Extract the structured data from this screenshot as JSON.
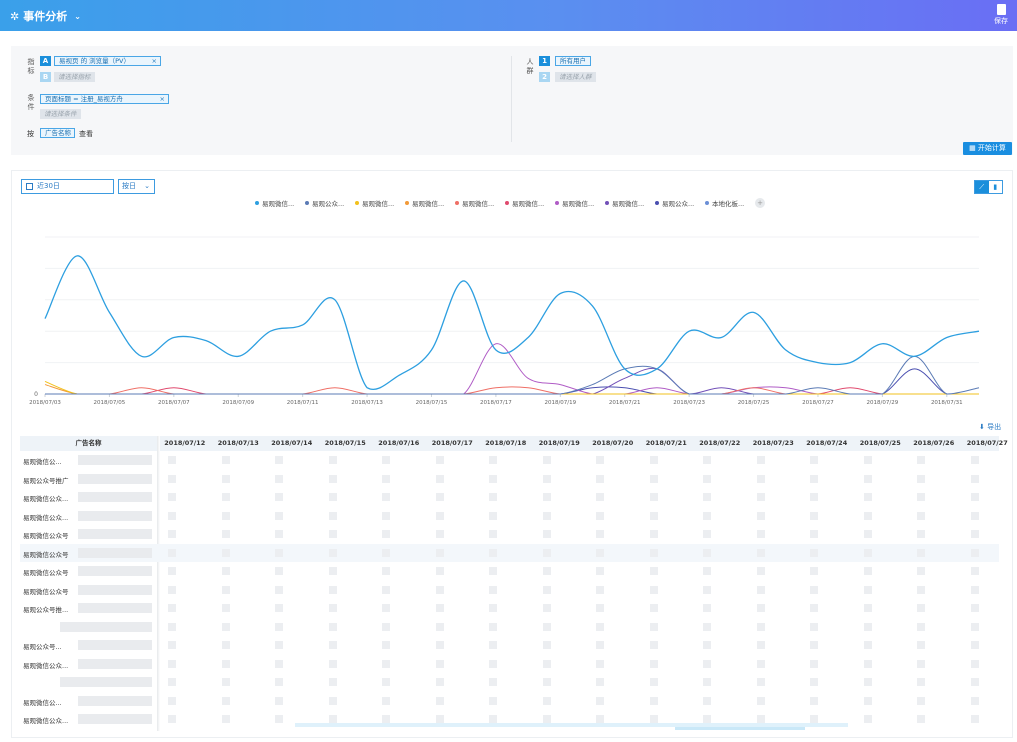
{
  "header": {
    "title": "事件分析",
    "save_label": "保存"
  },
  "query": {
    "metric_label": "指标",
    "condition_label": "条件",
    "group_label": "按",
    "people_label": "人群",
    "metric_letter_a": "A",
    "metric_letter_b": "B",
    "metric_chip": "易视页 的 浏览量（PV）",
    "metric_placeholder": "请选择指标",
    "condition_chip": "页面标题 = 注册_易视方舟",
    "condition_placeholder": "请选择条件",
    "group_chip": "广告名称",
    "group_view": "查看",
    "people_num_1": "1",
    "people_num_2": "2",
    "people_chip": "所有用户",
    "people_placeholder": "请选择人群",
    "calc_button": "开始计算"
  },
  "toolbar": {
    "date_range": "近30日",
    "granularity": "按日",
    "export_label": "导出"
  },
  "legend": [
    {
      "label": "易观微信...",
      "color": "#2d9fe0"
    },
    {
      "label": "易观公众...",
      "color": "#5b7bb5"
    },
    {
      "label": "易观微信...",
      "color": "#f2c11c"
    },
    {
      "label": "易观微信...",
      "color": "#f29a38"
    },
    {
      "label": "易观微信...",
      "color": "#ef6f66"
    },
    {
      "label": "易观微信...",
      "color": "#e04a6e"
    },
    {
      "label": "易观微信...",
      "color": "#b05cc6"
    },
    {
      "label": "易观微信...",
      "color": "#7250b8"
    },
    {
      "label": "易观公众...",
      "color": "#4a4fb0"
    },
    {
      "label": "本地化板...",
      "color": "#6b8fd6"
    }
  ],
  "chart_data": {
    "type": "line",
    "x": [
      "2018/07/03",
      "2018/07/04",
      "2018/07/05",
      "2018/07/06",
      "2018/07/07",
      "2018/07/08",
      "2018/07/09",
      "2018/07/10",
      "2018/07/11",
      "2018/07/12",
      "2018/07/13",
      "2018/07/14",
      "2018/07/15",
      "2018/07/16",
      "2018/07/17",
      "2018/07/18",
      "2018/07/19",
      "2018/07/20",
      "2018/07/21",
      "2018/07/22",
      "2018/07/23",
      "2018/07/24",
      "2018/07/25",
      "2018/07/26",
      "2018/07/27",
      "2018/07/28",
      "2018/07/29",
      "2018/07/30",
      "2018/07/31",
      "2018/08/01"
    ],
    "x_tick_labels": [
      "2018/07/03",
      "2018/07/05",
      "2018/07/07",
      "2018/07/09",
      "2018/07/11",
      "2018/07/13",
      "2018/07/15",
      "2018/07/17",
      "2018/07/19",
      "2018/07/21",
      "2018/07/23",
      "2018/07/25",
      "2018/07/27",
      "2018/07/29",
      "2018/07/31"
    ],
    "y_tick_labels": [
      "0"
    ],
    "ylim": [
      0,
      5
    ],
    "grid": true,
    "legend_position": "top",
    "series": [
      {
        "name": "易观微信...",
        "color": "#2d9fe0",
        "values": [
          2.4,
          4.4,
          2.6,
          1.2,
          1.8,
          1.7,
          1.2,
          2.0,
          2.2,
          3.0,
          0.2,
          0.6,
          1.4,
          3.6,
          1.4,
          1.8,
          3.2,
          2.8,
          0.8,
          0.8,
          2.0,
          1.8,
          2.6,
          1.4,
          1.0,
          1.0,
          1.6,
          1.2,
          1.8,
          2.0
        ]
      },
      {
        "name": "易观公众...",
        "color": "#5b7bb5",
        "values": [
          0,
          0,
          0,
          0,
          0,
          0,
          0,
          0,
          0,
          0,
          0,
          0,
          0,
          0,
          0,
          0,
          0,
          0.3,
          0.8,
          0.8,
          0,
          0,
          0,
          0,
          0.2,
          0,
          0,
          1.2,
          0,
          0.2
        ]
      },
      {
        "name": "易观微信...",
        "color": "#f2c11c",
        "values": [
          0.4,
          0,
          0,
          0,
          0,
          0,
          0,
          0,
          0,
          0,
          0,
          0,
          0,
          0,
          0,
          0,
          0,
          0,
          0,
          0,
          0,
          0,
          0,
          0,
          0,
          0,
          0,
          0,
          0,
          0
        ]
      },
      {
        "name": "易观微信...",
        "color": "#f29a38",
        "values": [
          0.3,
          0,
          0,
          0,
          0,
          0,
          0,
          0,
          0,
          0,
          0,
          0,
          0,
          0,
          0,
          0,
          0,
          0,
          0,
          0,
          0,
          0,
          0,
          0,
          0,
          0,
          0,
          0,
          0,
          0
        ]
      },
      {
        "name": "易观微信...",
        "color": "#ef6f66",
        "values": [
          0,
          0,
          0,
          0.2,
          0,
          0,
          0,
          0,
          0,
          0.2,
          0,
          0,
          0,
          0,
          0.2,
          0.2,
          0,
          0,
          0,
          0,
          0,
          0,
          0.2,
          0,
          0,
          0,
          0,
          0,
          0,
          0
        ]
      },
      {
        "name": "易观微信...",
        "color": "#e04a6e",
        "values": [
          0,
          0,
          0,
          0,
          0.2,
          0,
          0,
          0,
          0,
          0,
          0,
          0,
          0,
          0,
          0,
          0,
          0,
          0,
          0,
          0,
          0,
          0,
          0,
          0,
          0,
          0.2,
          0,
          0,
          0,
          0
        ]
      },
      {
        "name": "易观微信...",
        "color": "#b05cc6",
        "values": [
          0,
          0,
          0,
          0,
          0,
          0,
          0,
          0,
          0,
          0,
          0,
          0,
          0,
          0,
          1.6,
          0.5,
          0.3,
          0,
          0,
          0.2,
          0,
          0,
          0.2,
          0.2,
          0,
          0,
          0,
          0,
          0,
          0
        ]
      },
      {
        "name": "易观微信...",
        "color": "#7250b8",
        "values": [
          0,
          0,
          0,
          0,
          0,
          0,
          0,
          0,
          0,
          0,
          0,
          0,
          0,
          0,
          0,
          0,
          0,
          0,
          0.5,
          0.8,
          0,
          0.2,
          0,
          0,
          0,
          0,
          0,
          0,
          0,
          0
        ]
      },
      {
        "name": "易观公众...",
        "color": "#4a4fb0",
        "values": [
          0,
          0,
          0,
          0,
          0,
          0,
          0,
          0,
          0,
          0,
          0,
          0,
          0,
          0,
          0,
          0,
          0,
          0.2,
          0.2,
          0,
          0,
          0,
          0,
          0,
          0,
          0,
          0,
          0.8,
          0,
          0
        ]
      },
      {
        "name": "本地化板...",
        "color": "#6b8fd6",
        "values": [
          0,
          0,
          0,
          0,
          0,
          0,
          0,
          0,
          0,
          0,
          0,
          0,
          0,
          0,
          0,
          0,
          0,
          0,
          0,
          0,
          0,
          0,
          0,
          0,
          0,
          0,
          0,
          0,
          0,
          0
        ]
      }
    ]
  },
  "table": {
    "name_header": "广告名称",
    "date_headers": [
      "2018/07/12",
      "2018/07/13",
      "2018/07/14",
      "2018/07/15",
      "2018/07/16",
      "2018/07/17",
      "2018/07/18",
      "2018/07/19",
      "2018/07/20",
      "2018/07/21",
      "2018/07/22",
      "2018/07/23",
      "2018/07/24",
      "2018/07/25",
      "2018/07/26",
      "2018/07/27"
    ],
    "rows": [
      "易观微信公...",
      "易观公众号推广",
      "易观微信公众...",
      "易观微信公众...",
      "易观微信公众号",
      "易观微信公众号",
      "易观微信公众号",
      "易观微信公众号",
      "易观公众号推...",
      "",
      "易观公众号...",
      "易观微信公众...",
      "",
      "易观微信公...",
      "易观微信公众..."
    ]
  }
}
